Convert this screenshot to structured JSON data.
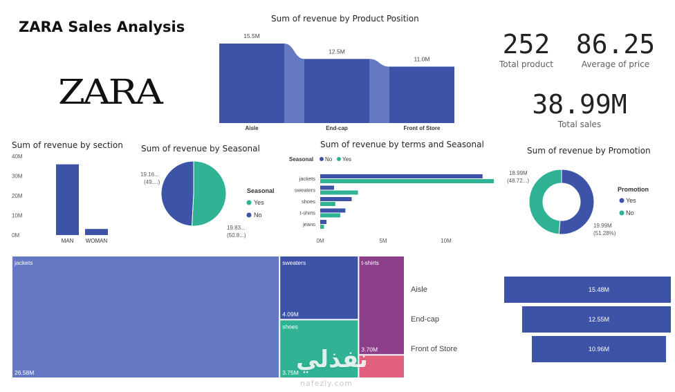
{
  "dashboard": {
    "title": "ZARA Sales Analysis",
    "logo_text": "ZARA",
    "colors": {
      "primary": "#3C53A8",
      "secondary": "#2FB394",
      "light_blue": "#6478C4",
      "purple": "#8D3E8A",
      "pink": "#E0607E"
    }
  },
  "kpis": {
    "total_product": {
      "value": "252",
      "label": "Total product"
    },
    "average_price": {
      "value": "86.25",
      "label": "Average of price"
    },
    "total_sales": {
      "value": "38.99M",
      "label": "Total sales"
    }
  },
  "watermark": {
    "text": "نفذلي",
    "subtext": "nafezly.com"
  },
  "chart_data": [
    {
      "id": "position",
      "type": "bar",
      "title": "Sum of revenue by Product Position",
      "categories": [
        "Aisle",
        "End-cap",
        "Front of Store"
      ],
      "values": [
        15.5,
        12.5,
        11.0
      ],
      "data_labels": [
        "15.5M",
        "12.5M",
        "11.0M"
      ],
      "ylim": [
        0,
        15.5
      ]
    },
    {
      "id": "section",
      "type": "bar",
      "title": "Sum of revenue by section",
      "categories": [
        "MAN",
        "WOMAN"
      ],
      "values": [
        35.9,
        3.1
      ],
      "yticks": [
        "40M",
        "30M",
        "20M",
        "10M",
        "0M"
      ],
      "ylim": [
        0,
        40
      ]
    },
    {
      "id": "seasonal",
      "type": "pie",
      "title": "Sum of revenue by Seasonal",
      "legend_title": "Seasonal",
      "labels": [
        "Yes",
        "No"
      ],
      "values": [
        19.83,
        19.16
      ],
      "data_labels": [
        "19.83...",
        "(50.8...)",
        "19.16...",
        "(49....)"
      ]
    },
    {
      "id": "terms",
      "type": "bar",
      "title": "Sum of revenue by terms and Seasonal",
      "legend_title": "Seasonal",
      "categories": [
        "jackets",
        "sweaters",
        "shoes",
        "t-shirts",
        "jeans"
      ],
      "series": [
        {
          "name": "No",
          "values": [
            12.9,
            1.1,
            2.5,
            2.0,
            0.5
          ]
        },
        {
          "name": "Yes",
          "values": [
            13.8,
            3.0,
            1.2,
            1.6,
            0.3
          ]
        }
      ],
      "xticks": [
        "0M",
        "5M",
        "10M"
      ],
      "xlim": [
        0,
        14
      ]
    },
    {
      "id": "promotion",
      "type": "pie",
      "title": "Sum of revenue by Promotion",
      "legend_title": "Promotion",
      "labels": [
        "Yes",
        "No"
      ],
      "values": [
        19.99,
        18.99
      ],
      "data_labels": [
        "19.99M",
        "(51.28%)",
        "18.99M",
        "(48.72...)"
      ]
    },
    {
      "id": "treemap",
      "type": "treemap",
      "labels": [
        "jackets",
        "sweaters",
        "shoes",
        "t-shirts",
        ""
      ],
      "values": [
        26.58,
        4.09,
        3.75,
        3.7,
        0.87
      ],
      "data_labels": [
        "26.58M",
        "4.09M",
        "3.75M",
        "3.70M",
        ""
      ]
    },
    {
      "id": "funnel",
      "type": "bar",
      "categories": [
        "Aisle",
        "End-cap",
        "Front of Store"
      ],
      "values": [
        15.48,
        12.55,
        10.96
      ],
      "data_labels": [
        "15.48M",
        "12.55M",
        "10.96M"
      ]
    }
  ]
}
